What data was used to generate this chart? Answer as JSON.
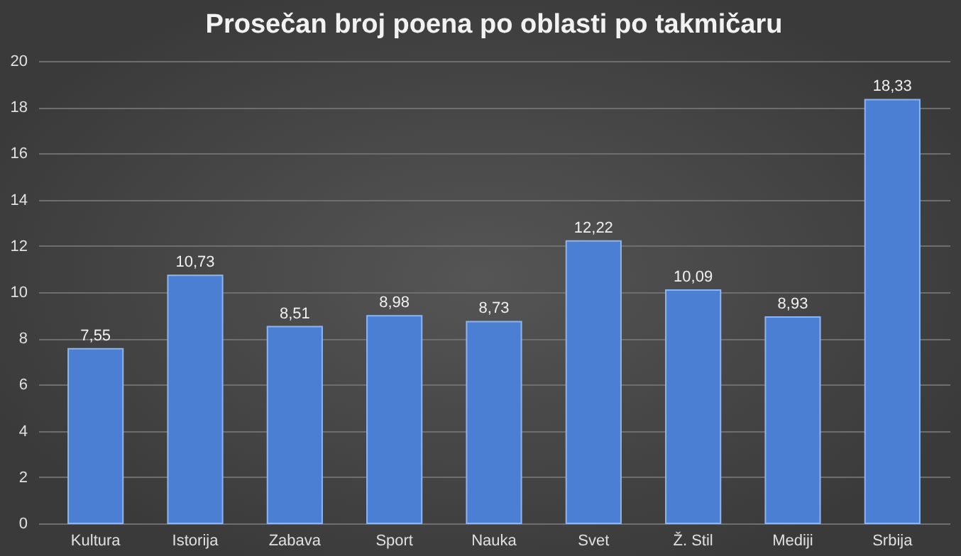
{
  "chart_data": {
    "type": "bar",
    "title": "Prosečan broj poena po oblasti po takmičaru",
    "categories": [
      "Kultura",
      "Istorija",
      "Zabava",
      "Sport",
      "Nauka",
      "Svet",
      "Ž. Stil",
      "Mediji",
      "Srbija"
    ],
    "values": [
      7.55,
      10.73,
      8.51,
      8.98,
      8.73,
      12.22,
      10.09,
      8.93,
      18.33
    ],
    "value_labels": [
      "7,55",
      "10,73",
      "8,51",
      "8,98",
      "8,73",
      "12,22",
      "10,09",
      "8,93",
      "18,33"
    ],
    "color": "#4a7fd4",
    "ylim": [
      0,
      20
    ],
    "yticks": [
      0,
      2,
      4,
      6,
      8,
      10,
      12,
      14,
      16,
      18,
      20
    ],
    "grid": "y"
  }
}
